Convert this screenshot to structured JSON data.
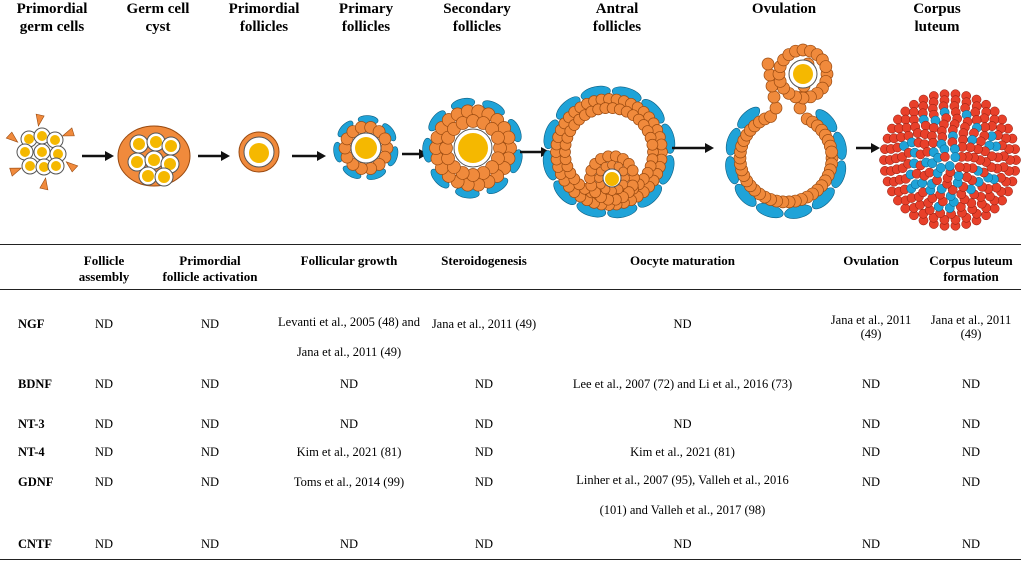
{
  "stages": [
    "Primordial germ cells",
    "Germ cell cyst",
    "Primordial follicles",
    "Primary follicles",
    "Secondary follicles",
    "Antral follicles",
    "Ovulation",
    "Corpus luteum"
  ],
  "stage_lines": [
    [
      "Primordial",
      "germ cells"
    ],
    [
      "Germ cell",
      "cyst"
    ],
    [
      "Primordial",
      "follicles"
    ],
    [
      "Primary",
      "follicles"
    ],
    [
      "Secondary",
      "follicles"
    ],
    [
      "Antral",
      "follicles"
    ],
    [
      "Ovulation",
      ""
    ],
    [
      "Corpus",
      "luteum"
    ]
  ],
  "colors": {
    "oocyte": "#F5B800",
    "granulosa": "#F08A3C",
    "granulosa_stroke": "#9A4A10",
    "theca": "#1FA3D8",
    "luteal_red": "#E8402A",
    "arrow": "#111111"
  },
  "table": {
    "columns": [
      [
        "Follicle",
        "assembly"
      ],
      [
        "Primordial",
        "follicle activation"
      ],
      [
        "Follicular growth",
        ""
      ],
      [
        "Steroidogenesis",
        ""
      ],
      [
        "Oocyte maturation",
        ""
      ],
      [
        "Ovulation",
        ""
      ],
      [
        "Corpus luteum",
        "formation"
      ]
    ],
    "rows": [
      {
        "label": "NGF",
        "cells": [
          "ND",
          "ND",
          "Levanti  et al., 2005 (48) and||Jana et al., 2011 (49)",
          "Jana et al., 2011 (49)",
          "ND",
          "Jana et al., 2011|(49)",
          "Jana et al., 2011|(49)"
        ]
      },
      {
        "label": "BDNF",
        "cells": [
          "ND",
          "ND",
          "ND",
          "ND",
          "Lee et al., 2007 (72) and Li et al., 2016 (73)",
          "ND",
          "ND"
        ]
      },
      {
        "label": "NT-3",
        "cells": [
          "ND",
          "ND",
          "ND",
          "ND",
          "ND",
          "ND",
          "ND"
        ]
      },
      {
        "label": "NT-4",
        "cells": [
          "ND",
          "ND",
          "Kim et al., 2021 (81)",
          "ND",
          "Kim et al., 2021 (81)",
          "ND",
          "ND"
        ]
      },
      {
        "label": "GDNF",
        "cells": [
          "ND",
          "ND",
          "Toms et al., 2014 (99)",
          "ND",
          "Linher  et al., 2007 (95), Valleh  et al., 2016||(101) and Valleh  et al., 2017 (98)",
          "ND",
          "ND"
        ]
      },
      {
        "label": "CNTF",
        "cells": [
          "ND",
          "ND",
          "ND",
          "ND",
          "ND",
          "ND",
          "ND"
        ]
      }
    ]
  }
}
